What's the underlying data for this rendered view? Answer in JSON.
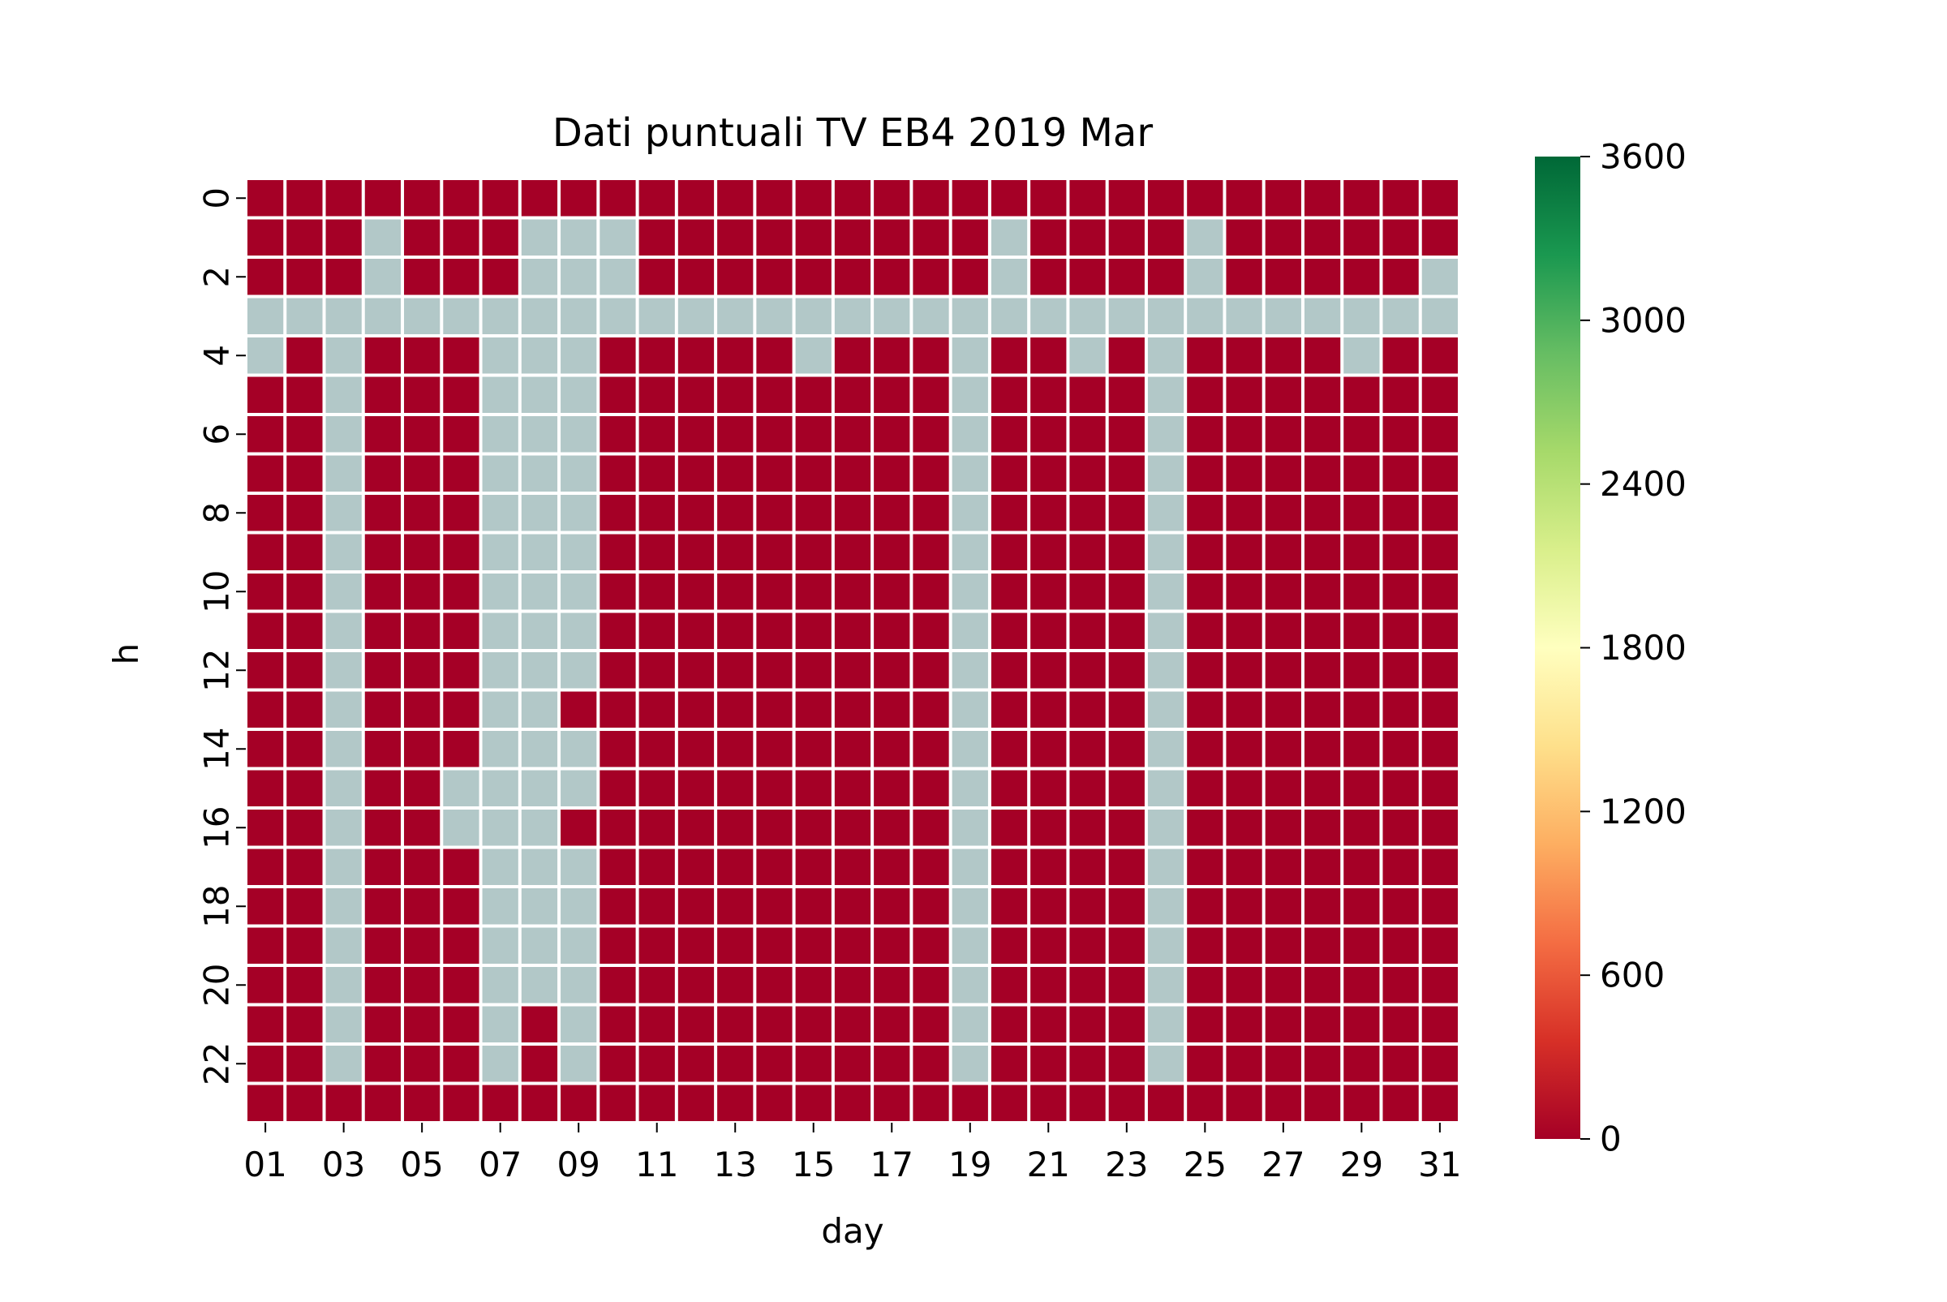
{
  "chart_data": {
    "type": "heatmap",
    "title": "Dati puntuali TV EB4 2019 Mar",
    "xlabel": "day",
    "ylabel": "h",
    "x_categories": [
      "01",
      "02",
      "03",
      "04",
      "05",
      "06",
      "07",
      "08",
      "09",
      "10",
      "11",
      "12",
      "13",
      "14",
      "15",
      "16",
      "17",
      "18",
      "19",
      "20",
      "21",
      "22",
      "23",
      "24",
      "25",
      "26",
      "27",
      "28",
      "29",
      "30",
      "31"
    ],
    "x_tick_labels": [
      "01",
      "03",
      "05",
      "07",
      "09",
      "11",
      "13",
      "15",
      "17",
      "19",
      "21",
      "23",
      "25",
      "27",
      "29",
      "31"
    ],
    "y_categories": [
      "0",
      "1",
      "2",
      "3",
      "4",
      "5",
      "6",
      "7",
      "8",
      "9",
      "10",
      "11",
      "12",
      "13",
      "14",
      "15",
      "16",
      "17",
      "18",
      "19",
      "20",
      "21",
      "22",
      "23"
    ],
    "y_tick_labels": [
      "0",
      "2",
      "4",
      "6",
      "8",
      "10",
      "12",
      "14",
      "16",
      "18",
      "20",
      "22"
    ],
    "colorbar": {
      "min": 0,
      "max": 3600,
      "ticks": [
        0,
        600,
        1200,
        1800,
        2400,
        3000,
        3600
      ],
      "colormap": "RdYlGn",
      "stops": [
        "#a50026",
        "#d73027",
        "#f46d43",
        "#fdae61",
        "#fee08b",
        "#ffffbf",
        "#d9ef8b",
        "#a6d96a",
        "#66bd63",
        "#1a9850",
        "#006837"
      ]
    },
    "missing_color": "#b2c8c8",
    "grid_line_color": "#ffffff",
    "value_description": "0 = value present (value 0, dark red), null = missing data (grey)",
    "values": [
      [
        0,
        0,
        0,
        0,
        0,
        0,
        0,
        0,
        0,
        0,
        0,
        0,
        0,
        0,
        0,
        0,
        0,
        0,
        0,
        0,
        0,
        0,
        0,
        0,
        0,
        0,
        0,
        0,
        0,
        0,
        0
      ],
      [
        0,
        0,
        0,
        null,
        0,
        0,
        0,
        null,
        null,
        null,
        0,
        0,
        0,
        0,
        0,
        0,
        0,
        0,
        0,
        null,
        0,
        0,
        0,
        0,
        null,
        0,
        0,
        0,
        0,
        0,
        0
      ],
      [
        0,
        0,
        0,
        null,
        0,
        0,
        0,
        null,
        null,
        null,
        0,
        0,
        0,
        0,
        0,
        0,
        0,
        0,
        0,
        null,
        0,
        0,
        0,
        0,
        null,
        0,
        0,
        0,
        0,
        0,
        null
      ],
      [
        null,
        null,
        null,
        null,
        null,
        null,
        null,
        null,
        null,
        null,
        null,
        null,
        null,
        null,
        null,
        null,
        null,
        null,
        null,
        null,
        null,
        null,
        null,
        null,
        null,
        null,
        null,
        null,
        null,
        null,
        null
      ],
      [
        null,
        0,
        null,
        0,
        0,
        0,
        null,
        null,
        null,
        0,
        0,
        0,
        0,
        0,
        null,
        0,
        0,
        0,
        null,
        0,
        0,
        null,
        0,
        null,
        0,
        0,
        0,
        0,
        null,
        0,
        0
      ],
      [
        0,
        0,
        null,
        0,
        0,
        0,
        null,
        null,
        null,
        0,
        0,
        0,
        0,
        0,
        0,
        0,
        0,
        0,
        null,
        0,
        0,
        0,
        0,
        null,
        0,
        0,
        0,
        0,
        0,
        0,
        0
      ],
      [
        0,
        0,
        null,
        0,
        0,
        0,
        null,
        null,
        null,
        0,
        0,
        0,
        0,
        0,
        0,
        0,
        0,
        0,
        null,
        0,
        0,
        0,
        0,
        null,
        0,
        0,
        0,
        0,
        0,
        0,
        0
      ],
      [
        0,
        0,
        null,
        0,
        0,
        0,
        null,
        null,
        null,
        0,
        0,
        0,
        0,
        0,
        0,
        0,
        0,
        0,
        null,
        0,
        0,
        0,
        0,
        null,
        0,
        0,
        0,
        0,
        0,
        0,
        0
      ],
      [
        0,
        0,
        null,
        0,
        0,
        0,
        null,
        null,
        null,
        0,
        0,
        0,
        0,
        0,
        0,
        0,
        0,
        0,
        null,
        0,
        0,
        0,
        0,
        null,
        0,
        0,
        0,
        0,
        0,
        0,
        0
      ],
      [
        0,
        0,
        null,
        0,
        0,
        0,
        null,
        null,
        null,
        0,
        0,
        0,
        0,
        0,
        0,
        0,
        0,
        0,
        null,
        0,
        0,
        0,
        0,
        null,
        0,
        0,
        0,
        0,
        0,
        0,
        0
      ],
      [
        0,
        0,
        null,
        0,
        0,
        0,
        null,
        null,
        null,
        0,
        0,
        0,
        0,
        0,
        0,
        0,
        0,
        0,
        null,
        0,
        0,
        0,
        0,
        null,
        0,
        0,
        0,
        0,
        0,
        0,
        0
      ],
      [
        0,
        0,
        null,
        0,
        0,
        0,
        null,
        null,
        null,
        0,
        0,
        0,
        0,
        0,
        0,
        0,
        0,
        0,
        null,
        0,
        0,
        0,
        0,
        null,
        0,
        0,
        0,
        0,
        0,
        0,
        0
      ],
      [
        0,
        0,
        null,
        0,
        0,
        0,
        null,
        null,
        null,
        0,
        0,
        0,
        0,
        0,
        0,
        0,
        0,
        0,
        null,
        0,
        0,
        0,
        0,
        null,
        0,
        0,
        0,
        0,
        0,
        0,
        0
      ],
      [
        0,
        0,
        null,
        0,
        0,
        0,
        null,
        null,
        0,
        0,
        0,
        0,
        0,
        0,
        0,
        0,
        0,
        0,
        null,
        0,
        0,
        0,
        0,
        null,
        0,
        0,
        0,
        0,
        0,
        0,
        0
      ],
      [
        0,
        0,
        null,
        0,
        0,
        0,
        null,
        null,
        null,
        0,
        0,
        0,
        0,
        0,
        0,
        0,
        0,
        0,
        null,
        0,
        0,
        0,
        0,
        null,
        0,
        0,
        0,
        0,
        0,
        0,
        0
      ],
      [
        0,
        0,
        null,
        0,
        0,
        null,
        null,
        null,
        null,
        0,
        0,
        0,
        0,
        0,
        0,
        0,
        0,
        0,
        null,
        0,
        0,
        0,
        0,
        null,
        0,
        0,
        0,
        0,
        0,
        0,
        0
      ],
      [
        0,
        0,
        null,
        0,
        0,
        null,
        null,
        null,
        0,
        0,
        0,
        0,
        0,
        0,
        0,
        0,
        0,
        0,
        null,
        0,
        0,
        0,
        0,
        null,
        0,
        0,
        0,
        0,
        0,
        0,
        0
      ],
      [
        0,
        0,
        null,
        0,
        0,
        0,
        null,
        null,
        null,
        0,
        0,
        0,
        0,
        0,
        0,
        0,
        0,
        0,
        null,
        0,
        0,
        0,
        0,
        null,
        0,
        0,
        0,
        0,
        0,
        0,
        0
      ],
      [
        0,
        0,
        null,
        0,
        0,
        0,
        null,
        null,
        null,
        0,
        0,
        0,
        0,
        0,
        0,
        0,
        0,
        0,
        null,
        0,
        0,
        0,
        0,
        null,
        0,
        0,
        0,
        0,
        0,
        0,
        0
      ],
      [
        0,
        0,
        null,
        0,
        0,
        0,
        null,
        null,
        null,
        0,
        0,
        0,
        0,
        0,
        0,
        0,
        0,
        0,
        null,
        0,
        0,
        0,
        0,
        null,
        0,
        0,
        0,
        0,
        0,
        0,
        0
      ],
      [
        0,
        0,
        null,
        0,
        0,
        0,
        null,
        null,
        null,
        0,
        0,
        0,
        0,
        0,
        0,
        0,
        0,
        0,
        null,
        0,
        0,
        0,
        0,
        null,
        0,
        0,
        0,
        0,
        0,
        0,
        0
      ],
      [
        0,
        0,
        null,
        0,
        0,
        0,
        null,
        0,
        null,
        0,
        0,
        0,
        0,
        0,
        0,
        0,
        0,
        0,
        null,
        0,
        0,
        0,
        0,
        null,
        0,
        0,
        0,
        0,
        0,
        0,
        0
      ],
      [
        0,
        0,
        null,
        0,
        0,
        0,
        null,
        0,
        null,
        0,
        0,
        0,
        0,
        0,
        0,
        0,
        0,
        0,
        null,
        0,
        0,
        0,
        0,
        null,
        0,
        0,
        0,
        0,
        0,
        0,
        0
      ],
      [
        0,
        0,
        0,
        0,
        0,
        0,
        0,
        0,
        0,
        0,
        0,
        0,
        0,
        0,
        0,
        0,
        0,
        0,
        0,
        0,
        0,
        0,
        0,
        0,
        0,
        0,
        0,
        0,
        0,
        0,
        0
      ]
    ]
  }
}
